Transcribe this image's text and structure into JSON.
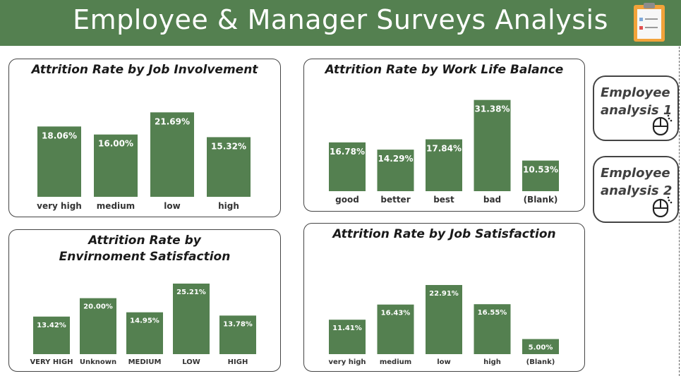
{
  "header": {
    "title": "Employee & Manager Surveys Analysis",
    "icon": "clipboard-icon",
    "color": "#548050"
  },
  "nav": [
    {
      "label": "Employee\nanalysis 1",
      "icon": "mouse-icon"
    },
    {
      "label": "Employee\nanalysis 2",
      "icon": "mouse-icon"
    }
  ],
  "bar_color": "#548050",
  "chart_data": [
    {
      "type": "bar",
      "title": "Attrition Rate by Job Involvement",
      "categories": [
        "very high",
        "medium",
        "low",
        "high"
      ],
      "values": [
        18.06,
        16.0,
        21.69,
        15.32
      ],
      "labels": [
        "18.06%",
        "16.00%",
        "21.69%",
        "15.32%"
      ],
      "ylim": [
        0,
        25
      ]
    },
    {
      "type": "bar",
      "title": "Attrition Rate by Work Life Balance",
      "categories": [
        "good",
        "better",
        "best",
        "bad",
        "(Blank)"
      ],
      "values": [
        16.78,
        14.29,
        17.84,
        31.38,
        10.53
      ],
      "labels": [
        "16.78%",
        "14.29%",
        "17.84%",
        "31.38%",
        "10.53%"
      ],
      "ylim": [
        0,
        33
      ]
    },
    {
      "type": "bar",
      "title": "Attrition Rate by Envirnoment Satisfaction",
      "categories": [
        "VERY HIGH",
        "Unknown",
        "MEDIUM",
        "LOW",
        "HIGH"
      ],
      "values": [
        13.42,
        20.0,
        14.95,
        25.21,
        13.78
      ],
      "labels": [
        "13.42%",
        "20.00%",
        "14.95%",
        "25.21%",
        "13.78%"
      ],
      "ylim": [
        0,
        25.21
      ]
    },
    {
      "type": "bar",
      "title": "Attrition Rate by Job Satisfaction",
      "categories": [
        "very high",
        "medium",
        "low",
        "high",
        "(Blank)"
      ],
      "values": [
        11.41,
        16.43,
        22.91,
        16.55,
        5.0
      ],
      "labels": [
        "11.41%",
        "16.43%",
        "22.91%",
        "16.55%",
        "5.00%"
      ],
      "ylim": [
        0,
        22.91
      ]
    }
  ]
}
